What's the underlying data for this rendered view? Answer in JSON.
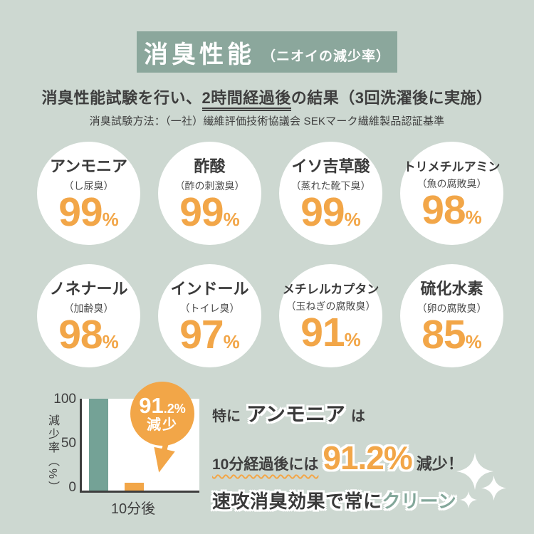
{
  "colors": {
    "background": "#cdd8d1",
    "band_green": "#8ba79c",
    "text_dark": "#3e3e3e",
    "accent_orange": "#f2a648",
    "bar_green": "#74a296",
    "clean_green": "#83a79a",
    "circle_bg": "#ffffff"
  },
  "header": {
    "title": "消臭性能",
    "subtitle": "（ニオイの減少率）"
  },
  "intro": {
    "line_pre": "消臭性能試験を行い、",
    "line_underlined": "2時間経過後",
    "line_post": "の結果（3回洗濯後に実施）",
    "method": "消臭試験方法：（一社）繊維評価技術協議会 SEKマーク繊維製品認証基準"
  },
  "chart_data": [
    {
      "type": "bar",
      "categories": [
        "アンモニア",
        "酢酸",
        "イソ吉草酸",
        "トリメチルアミン",
        "ノネナール",
        "インドール",
        "メチレルカプタン",
        "硫化水素"
      ],
      "category_sublabels": [
        "（し尿臭）",
        "（酢の刺激臭）",
        "（蒸れた靴下臭）",
        "（魚の腐敗臭）",
        "（加齢臭）",
        "（トイレ臭）",
        "（玉ねぎの腐敗臭）",
        "（卵の腐敗臭）"
      ],
      "values": [
        99,
        99,
        99,
        98,
        98,
        97,
        91,
        85
      ],
      "unit": "%"
    },
    {
      "type": "bar",
      "categories": [
        "",
        "10分後"
      ],
      "values": [
        100,
        8.8
      ],
      "bar_colors": [
        "#74a296",
        "#f2a648"
      ],
      "ylabel": "減少率（%）",
      "yticks": [
        0,
        50,
        100
      ],
      "ylim": [
        0,
        100
      ],
      "badge": {
        "big": "91",
        "small": ".2%",
        "label": "減少"
      }
    }
  ],
  "copy": {
    "line1_pre": "特に",
    "line1_em": "アンモニア",
    "line1_post": "は",
    "line2_pre": "10分経過後には",
    "line2_value": "91.2%",
    "line2_post": "減少！",
    "line3_main": "速攻消臭効果で常に",
    "line3_accent": "クリーン"
  }
}
